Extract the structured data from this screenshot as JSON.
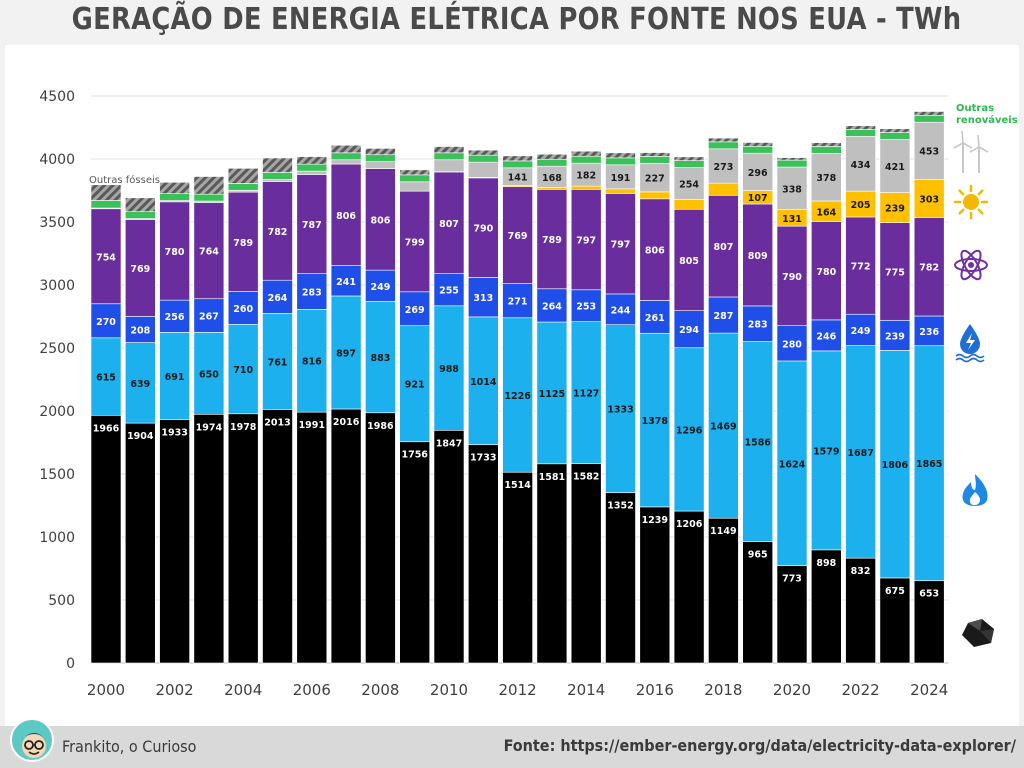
{
  "title": "GERAÇÃO DE ENERGIA ELÉTRICA POR FONTE NOS EUA - TWh",
  "footer": {
    "author": "Frankito, o Curioso",
    "source": "Fonte: https://ember-energy.org/data/electricity-data-explorer/"
  },
  "chart_data": {
    "type": "bar",
    "stacked": true,
    "grid": true,
    "ylim": [
      0,
      4500
    ],
    "yticks": [
      0,
      500,
      1000,
      1500,
      2000,
      2500,
      3000,
      3500,
      4000,
      4500
    ],
    "x": [
      2000,
      2001,
      2002,
      2003,
      2004,
      2005,
      2006,
      2007,
      2008,
      2009,
      2010,
      2011,
      2012,
      2013,
      2014,
      2015,
      2016,
      2017,
      2018,
      2019,
      2020,
      2021,
      2022,
      2023,
      2024
    ],
    "xtick_labels": [
      "2000",
      "2002",
      "2004",
      "2006",
      "2008",
      "2010",
      "2012",
      "2014",
      "2016",
      "2018",
      "2020",
      "2022",
      "2024"
    ],
    "series": [
      {
        "key": "coal",
        "icon": "coal-icon",
        "color": "#000000",
        "label_color": "#ffffff",
        "values": [
          1966,
          1904,
          1933,
          1974,
          1978,
          2013,
          1991,
          2016,
          1986,
          1756,
          1847,
          1733,
          1514,
          1581,
          1582,
          1352,
          1239,
          1206,
          1149,
          965,
          773,
          898,
          832,
          675,
          653
        ]
      },
      {
        "key": "gas",
        "icon": "flame-icon",
        "color": "#1cb0ee",
        "label_color": "#1a1a1a",
        "values": [
          615,
          639,
          691,
          650,
          710,
          761,
          816,
          897,
          883,
          921,
          988,
          1014,
          1226,
          1125,
          1127,
          1333,
          1378,
          1296,
          1469,
          1586,
          1624,
          1579,
          1687,
          1806,
          1865
        ]
      },
      {
        "key": "hydro",
        "icon": "hydro-icon",
        "color": "#1f4ee8",
        "label_color": "#ffffff",
        "values": [
          270,
          208,
          256,
          267,
          260,
          264,
          283,
          241,
          249,
          269,
          255,
          313,
          271,
          264,
          253,
          244,
          261,
          294,
          287,
          283,
          280,
          246,
          249,
          239,
          236
        ]
      },
      {
        "key": "nuclear",
        "icon": "atom-icon",
        "color": "#6a2d9e",
        "label_color": "#ffffff",
        "values": [
          754,
          769,
          780,
          764,
          789,
          782,
          787,
          806,
          806,
          799,
          807,
          790,
          769,
          789,
          797,
          797,
          806,
          805,
          807,
          809,
          790,
          780,
          772,
          775,
          782
        ]
      },
      {
        "key": "solar",
        "icon": "sun-icon",
        "color": "#ffc000",
        "label_color": "#1a1a1a",
        "values": [
          0,
          0,
          0,
          0,
          0,
          0,
          0,
          0,
          0,
          0,
          2,
          5,
          9,
          16,
          26,
          37,
          55,
          77,
          96,
          107,
          131,
          164,
          205,
          239,
          303
        ],
        "labels": [
          null,
          null,
          null,
          null,
          null,
          null,
          null,
          null,
          null,
          null,
          null,
          null,
          null,
          null,
          null,
          null,
          null,
          null,
          null,
          "107",
          "131",
          "164",
          "205",
          "239",
          "303"
        ]
      },
      {
        "key": "wind",
        "icon": "wind-turbine-icon",
        "color": "#bfbfbf",
        "label_color": "#1a1a1a",
        "values": [
          6,
          7,
          10,
          11,
          14,
          18,
          27,
          34,
          55,
          74,
          95,
          120,
          141,
          168,
          182,
          191,
          227,
          254,
          273,
          296,
          338,
          378,
          434,
          421,
          453
        ],
        "labels": [
          null,
          null,
          null,
          null,
          null,
          null,
          null,
          null,
          null,
          null,
          null,
          null,
          "141",
          "168",
          "182",
          "191",
          "227",
          "254",
          "273",
          "296",
          "338",
          "378",
          "434",
          "421",
          "453"
        ]
      },
      {
        "key": "other_renewables",
        "name": "Outras renováveis",
        "color": "#3cc05a",
        "values": [
          60,
          55,
          55,
          55,
          55,
          55,
          55,
          55,
          55,
          55,
          55,
          55,
          55,
          55,
          55,
          55,
          55,
          55,
          55,
          55,
          55,
          55,
          55,
          55,
          55
        ]
      },
      {
        "key": "other_fossil",
        "name": "Outras fósseis",
        "color": "#9a9a9a",
        "hatched": true,
        "values": [
          125,
          110,
          90,
          140,
          120,
          115,
          60,
          60,
          50,
          40,
          50,
          40,
          40,
          40,
          40,
          40,
          30,
          30,
          30,
          30,
          20,
          30,
          30,
          30,
          30
        ]
      }
    ],
    "legend": {
      "outras_renovaveis": [
        "Outras",
        "renováveis"
      ],
      "outras_fosseis": "Outras fósseis"
    }
  }
}
